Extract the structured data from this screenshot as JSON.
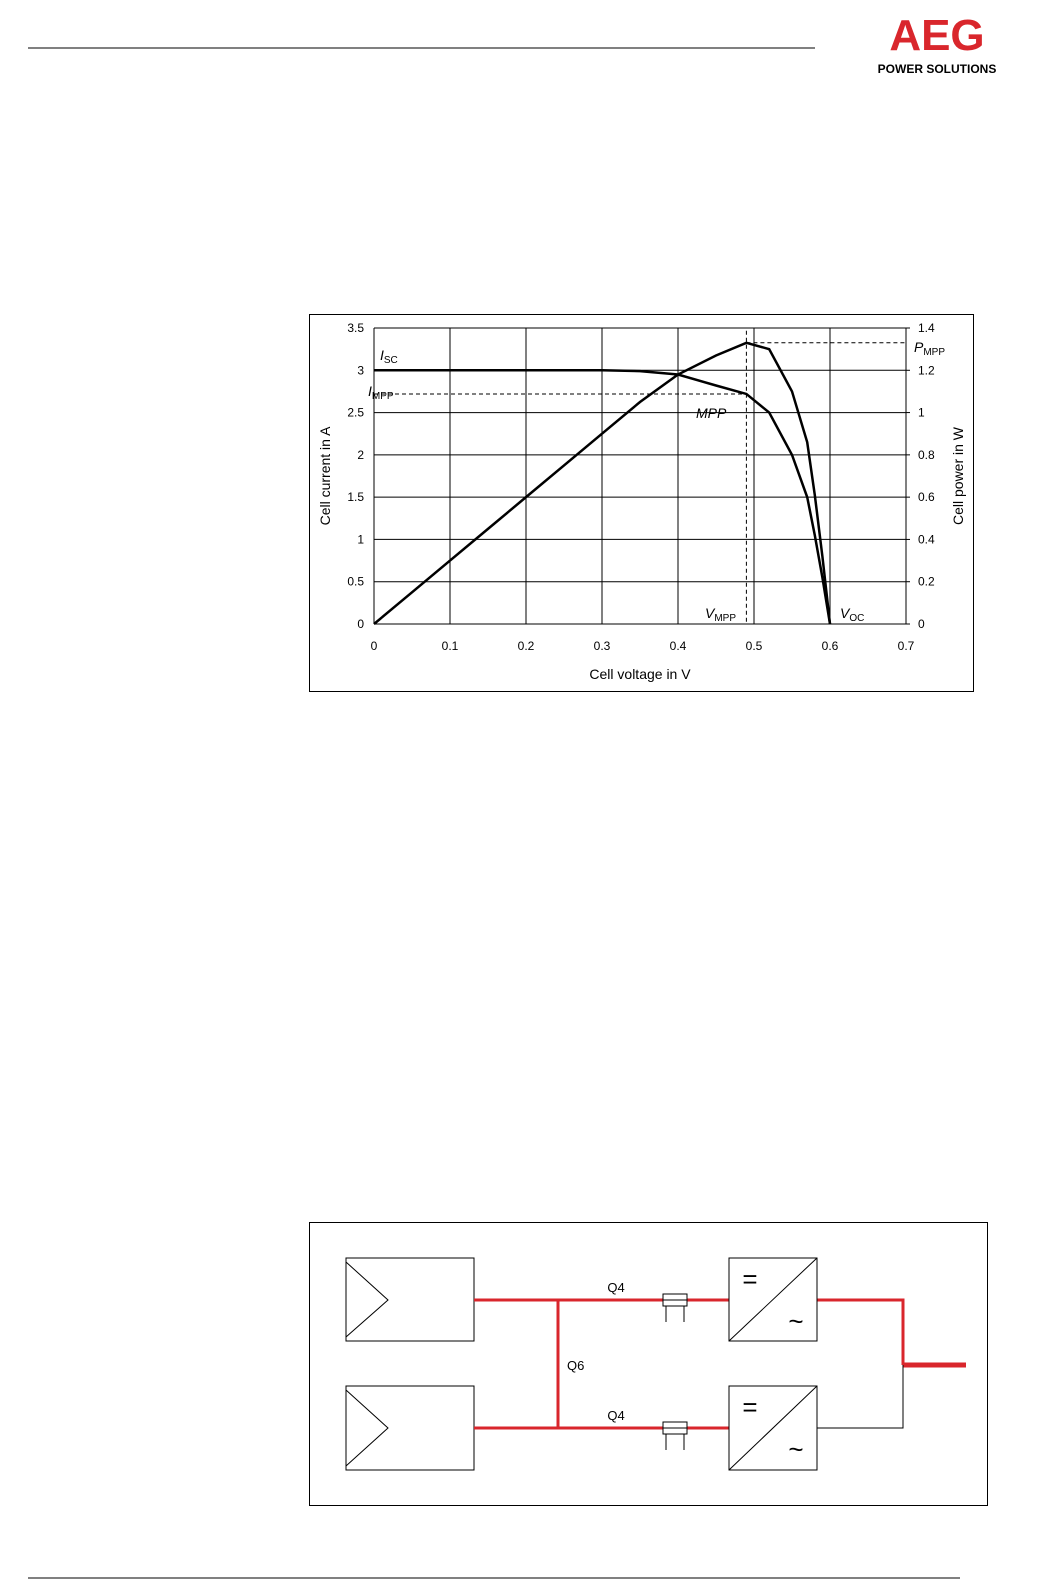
{
  "header": {
    "logo": "AEG",
    "tagline": "POWER SOLUTIONS"
  },
  "chart_data": {
    "type": "line",
    "x": [
      0,
      0.05,
      0.1,
      0.15,
      0.2,
      0.25,
      0.3,
      0.35,
      0.4,
      0.45,
      0.49,
      0.52,
      0.55,
      0.57,
      0.58,
      0.59,
      0.6
    ],
    "series": [
      {
        "name": "Cell current",
        "color": "#000000",
        "values": [
          3,
          3,
          3,
          3,
          3,
          3,
          3,
          2.99,
          2.95,
          2.82,
          2.72,
          2.5,
          2.0,
          1.5,
          1.05,
          0.55,
          0
        ]
      },
      {
        "name": "Cell power",
        "color": "#000000",
        "axis": "y2",
        "values": [
          0,
          0.15,
          0.3,
          0.45,
          0.6,
          0.75,
          0.9,
          1.05,
          1.18,
          1.27,
          1.33,
          1.3,
          1.1,
          0.86,
          0.61,
          0.32,
          0
        ]
      }
    ],
    "xlim": [
      0,
      0.7
    ],
    "xticks": [
      0,
      0.1,
      0.2,
      0.3,
      0.4,
      0.5,
      0.6,
      0.7
    ],
    "ylim": [
      0,
      3.5
    ],
    "yticks": [
      0,
      0.5,
      1,
      1.5,
      2,
      2.5,
      3,
      3.5
    ],
    "y2lim": [
      0,
      1.4
    ],
    "y2ticks": [
      0,
      0.2,
      0.4,
      0.6,
      0.8,
      1,
      1.2,
      1.4
    ],
    "xlabel": "Cell voltage in V",
    "ylabel": "Cell current in A",
    "y2label": "Cell power in W",
    "grid": true,
    "annotations": [
      {
        "text": "I",
        "sub": "SC"
      },
      {
        "text": "I",
        "sub": "MPP"
      },
      {
        "text": "MPP"
      },
      {
        "text": "V",
        "sub": "MPP"
      },
      {
        "text": "V",
        "sub": "OC"
      },
      {
        "text": "P",
        "sub": "MPP"
      }
    ]
  },
  "diagram": {
    "labels": [
      "Q4",
      "Q6",
      "Q4"
    ]
  }
}
